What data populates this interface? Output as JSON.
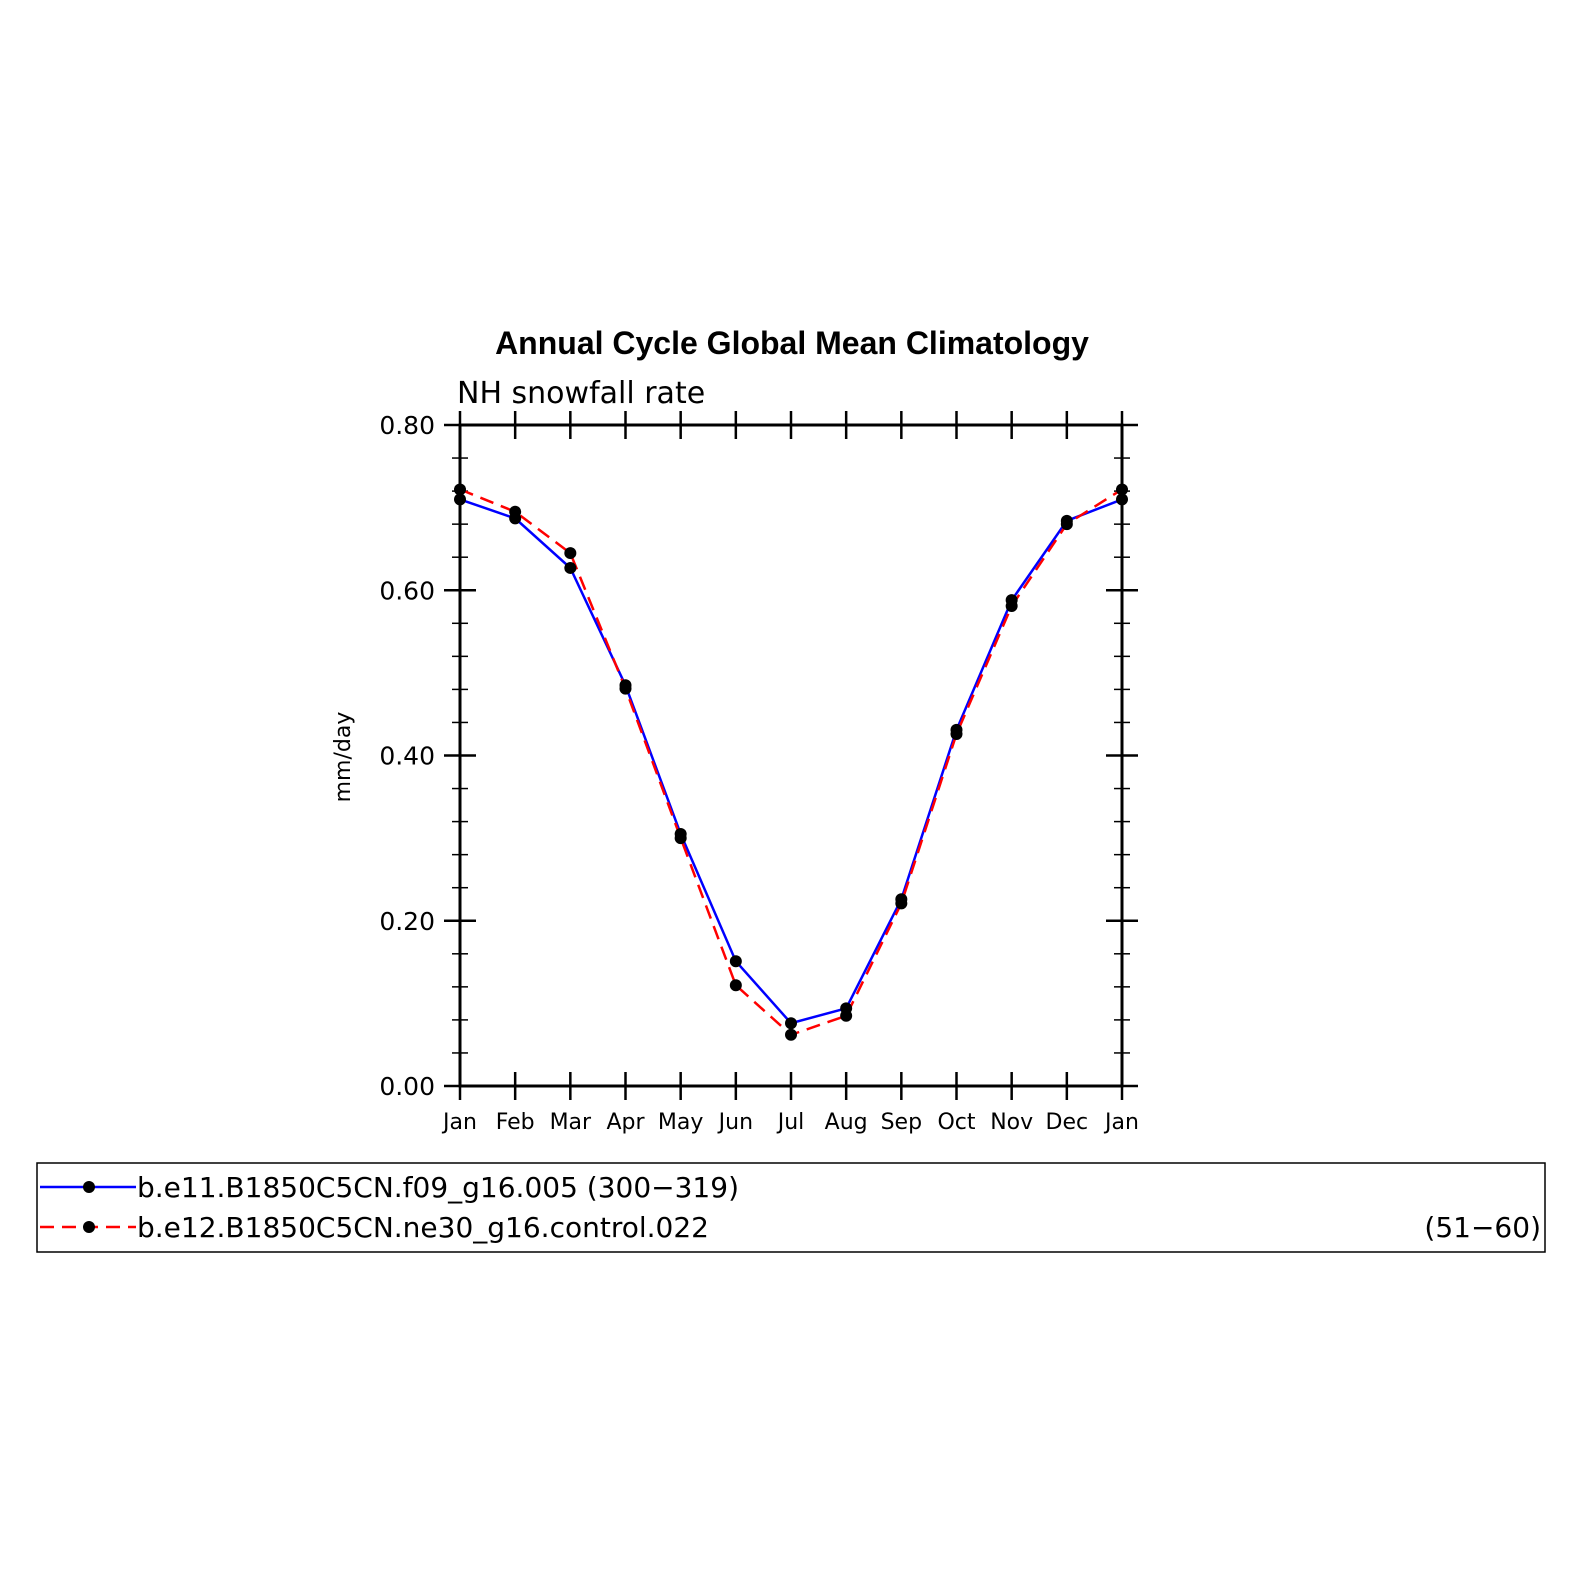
{
  "chart_data": {
    "type": "line",
    "title": "Annual Cycle Global Mean Climatology",
    "subtitle": "NH snowfall rate",
    "xlabel": "",
    "ylabel": "mm/day",
    "ylim": [
      0,
      0.8
    ],
    "yticks": [
      "0.00",
      "0.20",
      "0.40",
      "0.60",
      "0.80"
    ],
    "categories": [
      "Jan",
      "Feb",
      "Mar",
      "Apr",
      "May",
      "Jun",
      "Jul",
      "Aug",
      "Sep",
      "Oct",
      "Nov",
      "Dec",
      "Jan"
    ],
    "grid": false,
    "legend_position": "bottom",
    "series": [
      {
        "name": "b.e11.B1850C5CN.f09_g16.005 (300−319)",
        "color": "#0000ff",
        "line_style": "solid",
        "values": [
          0.71,
          0.687,
          0.627,
          0.485,
          0.305,
          0.151,
          0.076,
          0.094,
          0.226,
          0.431,
          0.588,
          0.684,
          0.71
        ]
      },
      {
        "name": "b.e12.B1850C5CN.ne30_g16.control.022",
        "name_suffix": "(51−60)",
        "color": "#ff0000",
        "line_style": "dashed",
        "values": [
          0.722,
          0.695,
          0.645,
          0.481,
          0.3,
          0.122,
          0.062,
          0.085,
          0.221,
          0.426,
          0.581,
          0.68,
          0.722
        ]
      }
    ]
  }
}
